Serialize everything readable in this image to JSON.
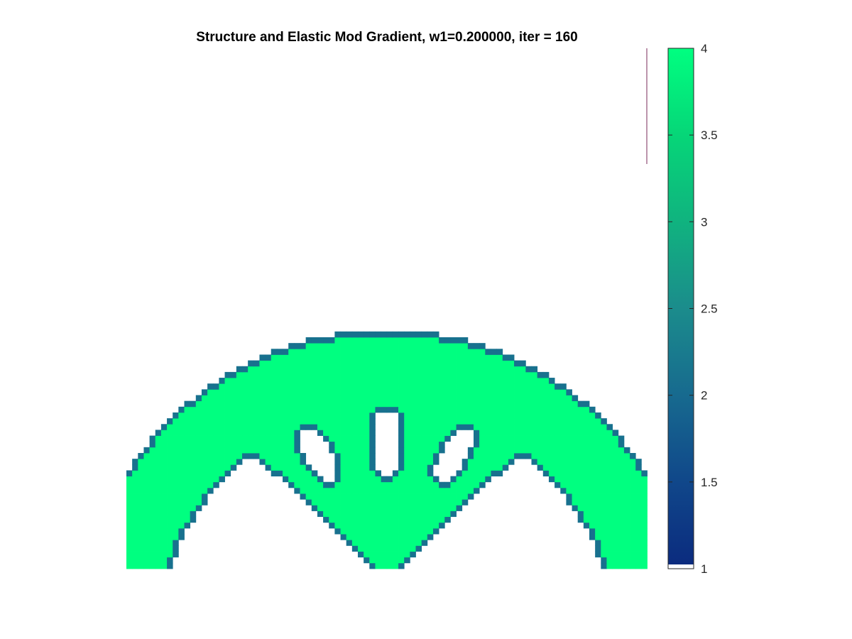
{
  "chart_data": {
    "type": "heatmap",
    "title": "Structure and Elastic Mod Gradient, w1=0.200000, iter = 160",
    "xlabel": "",
    "ylabel": "",
    "grid": false,
    "colormap": {
      "name": "winter-like",
      "stops": [
        {
          "value": 1,
          "color": "#0b2a7e"
        },
        {
          "value": 1.5,
          "color": "#10478a"
        },
        {
          "value": 2,
          "color": "#176a8f"
        },
        {
          "value": 2.5,
          "color": "#1b8c8c"
        },
        {
          "value": 3,
          "color": "#10b37f"
        },
        {
          "value": 3.5,
          "color": "#06d678"
        },
        {
          "value": 4,
          "color": "#00ff80"
        }
      ]
    },
    "colorbar": {
      "position": "right",
      "range": [
        1,
        4
      ],
      "ticks": [
        1,
        1.5,
        2,
        2.5,
        3,
        3.5,
        4
      ],
      "tick_labels": [
        "1",
        "1.5",
        "2",
        "2.5",
        "3",
        "3.5",
        "4"
      ]
    },
    "field_description_values": {
      "solid_interior": 4,
      "boundary_layer": 2.1,
      "void": null
    },
    "shape": "arch with three interior holes (half-symmetric topology optimization result)"
  }
}
